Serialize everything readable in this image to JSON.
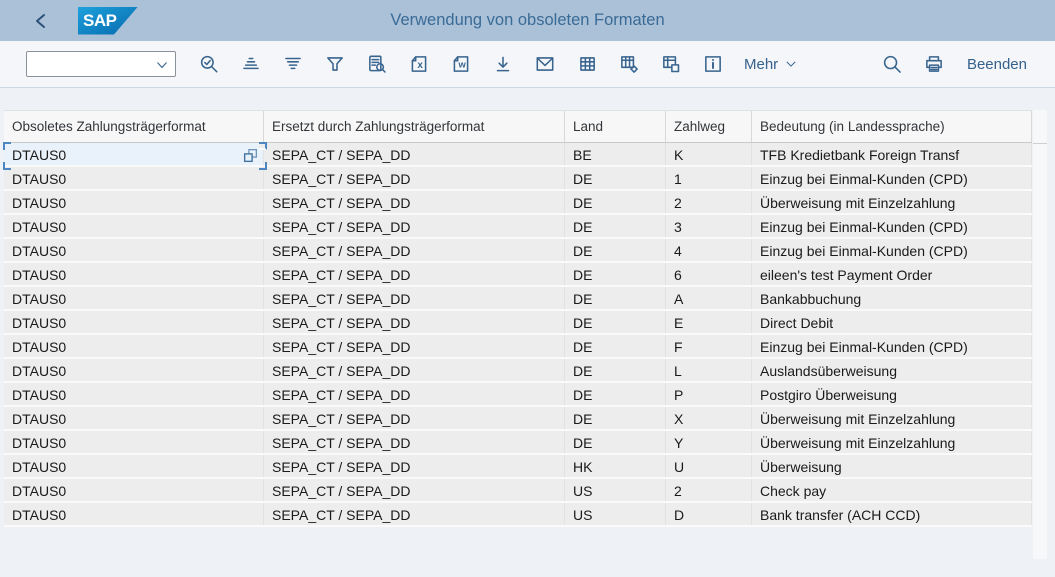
{
  "topbar": {
    "logo": "SAP",
    "title": "Verwendung von obsoleten Formaten"
  },
  "toolbar": {
    "combobox": {
      "value": "",
      "placeholder": ""
    },
    "icons": [
      "find-icon",
      "sort-ascending-icon",
      "sort-descending-icon",
      "filter-icon",
      "print-preview-icon",
      "export-spreadsheet-icon",
      "export-word-icon",
      "download-icon",
      "email-icon",
      "table-icon",
      "table-settings-icon",
      "table-views-icon",
      "info-icon"
    ],
    "mehr_label": "Mehr",
    "beenden_label": "Beenden"
  },
  "table": {
    "columns": [
      "Obsoletes Zahlungsträgerformat",
      "Ersetzt durch Zahlungsträgerformat",
      "Land",
      "Zahlweg",
      "Bedeutung (in Landessprache)"
    ],
    "rows": [
      [
        "DTAUS0",
        "SEPA_CT / SEPA_DD",
        "BE",
        "K",
        "TFB Kredietbank Foreign Transf"
      ],
      [
        "DTAUS0",
        "SEPA_CT / SEPA_DD",
        "DE",
        "1",
        "Einzug bei Einmal-Kunden (CPD)"
      ],
      [
        "DTAUS0",
        "SEPA_CT / SEPA_DD",
        "DE",
        "2",
        "Überweisung mit Einzelzahlung"
      ],
      [
        "DTAUS0",
        "SEPA_CT / SEPA_DD",
        "DE",
        "3",
        "Einzug bei Einmal-Kunden (CPD)"
      ],
      [
        "DTAUS0",
        "SEPA_CT / SEPA_DD",
        "DE",
        "4",
        "Einzug bei Einmal-Kunden (CPD)"
      ],
      [
        "DTAUS0",
        "SEPA_CT / SEPA_DD",
        "DE",
        "6",
        "eileen's test Payment Order"
      ],
      [
        "DTAUS0",
        "SEPA_CT / SEPA_DD",
        "DE",
        "A",
        "Bankabbuchung"
      ],
      [
        "DTAUS0",
        "SEPA_CT / SEPA_DD",
        "DE",
        "E",
        "Direct Debit"
      ],
      [
        "DTAUS0",
        "SEPA_CT / SEPA_DD",
        "DE",
        "F",
        "Einzug bei Einmal-Kunden (CPD)"
      ],
      [
        "DTAUS0",
        "SEPA_CT / SEPA_DD",
        "DE",
        "L",
        "Auslandsüberweisung"
      ],
      [
        "DTAUS0",
        "SEPA_CT / SEPA_DD",
        "DE",
        "P",
        "Postgiro Überweisung"
      ],
      [
        "DTAUS0",
        "SEPA_CT / SEPA_DD",
        "DE",
        "X",
        "Überweisung mit Einzelzahlung"
      ],
      [
        "DTAUS0",
        "SEPA_CT / SEPA_DD",
        "DE",
        "Y",
        "Überweisung mit Einzelzahlung"
      ],
      [
        "DTAUS0",
        "SEPA_CT / SEPA_DD",
        "HK",
        "U",
        "Überweisung"
      ],
      [
        "DTAUS0",
        "SEPA_CT / SEPA_DD",
        "US",
        "2",
        "Check pay"
      ],
      [
        "DTAUS0",
        "SEPA_CT / SEPA_DD",
        "US",
        "D",
        "Bank transfer (ACH CCD)"
      ]
    ],
    "selected": {
      "row": 0,
      "col": 0
    }
  },
  "colors": {
    "topbar_bg": "#aac1d8",
    "title_text": "#3a6b96",
    "accent_icon": "#38648e",
    "page_bg": "#eef2f7",
    "toolbar_bg": "#f4f6f9",
    "row_bg": "#ededed",
    "header_row_bg": "#f7f7f7",
    "selected_cell_bg": "#e9f2fb",
    "focus_corner": "#4e86c2",
    "logo_blue_top": "#1da1dc",
    "logo_blue_bottom": "#0a6cab"
  }
}
